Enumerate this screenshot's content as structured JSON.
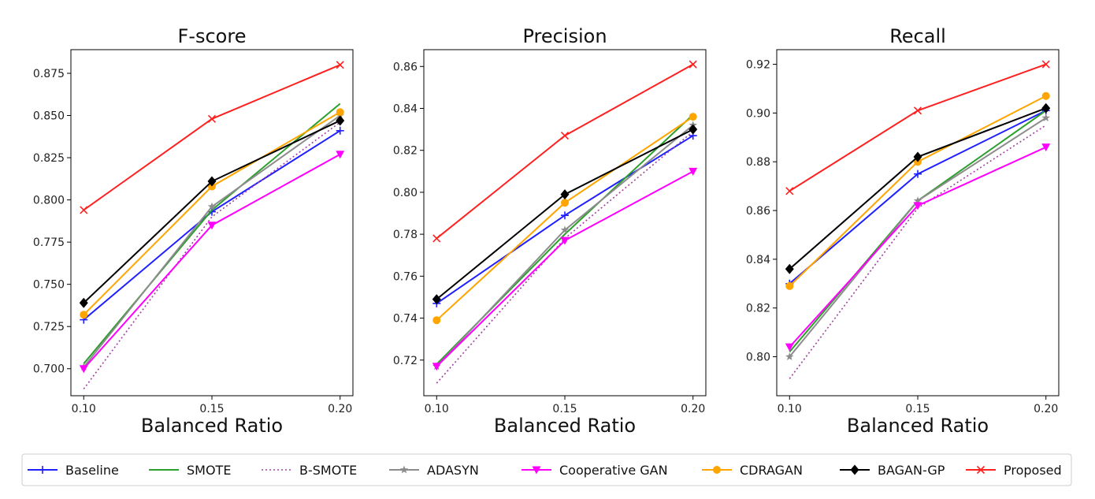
{
  "chart_data": [
    {
      "type": "line",
      "title": "F-score",
      "xlabel": "Balanced Ratio",
      "ylabel": "",
      "x": [
        0.1,
        0.15,
        0.2
      ],
      "x_tick_labels": [
        "0.10",
        "0.15",
        "0.20"
      ],
      "xlim": [
        0.095,
        0.205
      ],
      "ylim": [
        0.684,
        0.889
      ],
      "y_ticks": [
        0.7,
        0.725,
        0.75,
        0.775,
        0.8,
        0.825,
        0.85,
        0.875
      ],
      "y_tick_labels": [
        "0.700",
        "0.725",
        "0.750",
        "0.775",
        "0.800",
        "0.825",
        "0.850",
        "0.875"
      ],
      "series": [
        {
          "name": "Baseline",
          "values": [
            0.729,
            0.793,
            0.841
          ]
        },
        {
          "name": "SMOTE",
          "values": [
            0.703,
            0.794,
            0.857
          ]
        },
        {
          "name": "B-SMOTE",
          "values": [
            0.688,
            0.79,
            0.846
          ]
        },
        {
          "name": "ADASYN",
          "values": [
            0.701,
            0.796,
            0.85
          ]
        },
        {
          "name": "Cooperative GAN",
          "values": [
            0.7,
            0.785,
            0.827
          ]
        },
        {
          "name": "CDRAGAN",
          "values": [
            0.732,
            0.808,
            0.852
          ]
        },
        {
          "name": "BAGAN-GP",
          "values": [
            0.739,
            0.811,
            0.847
          ]
        },
        {
          "name": "Proposed",
          "values": [
            0.794,
            0.848,
            0.88
          ]
        }
      ]
    },
    {
      "type": "line",
      "title": "Precision",
      "xlabel": "Balanced Ratio",
      "ylabel": "",
      "x": [
        0.1,
        0.15,
        0.2
      ],
      "x_tick_labels": [
        "0.10",
        "0.15",
        "0.20"
      ],
      "xlim": [
        0.095,
        0.205
      ],
      "ylim": [
        0.703,
        0.868
      ],
      "y_ticks": [
        0.72,
        0.74,
        0.76,
        0.78,
        0.8,
        0.82,
        0.84,
        0.86
      ],
      "y_tick_labels": [
        "0.72",
        "0.74",
        "0.76",
        "0.78",
        "0.80",
        "0.82",
        "0.84",
        "0.86"
      ],
      "series": [
        {
          "name": "Baseline",
          "values": [
            0.747,
            0.789,
            0.827
          ]
        },
        {
          "name": "SMOTE",
          "values": [
            0.718,
            0.78,
            0.837
          ]
        },
        {
          "name": "B-SMOTE",
          "values": [
            0.709,
            0.778,
            0.829
          ]
        },
        {
          "name": "ADASYN",
          "values": [
            0.717,
            0.782,
            0.832
          ]
        },
        {
          "name": "Cooperative GAN",
          "values": [
            0.717,
            0.777,
            0.81
          ]
        },
        {
          "name": "CDRAGAN",
          "values": [
            0.739,
            0.795,
            0.836
          ]
        },
        {
          "name": "BAGAN-GP",
          "values": [
            0.749,
            0.799,
            0.83
          ]
        },
        {
          "name": "Proposed",
          "values": [
            0.778,
            0.827,
            0.861
          ]
        }
      ]
    },
    {
      "type": "line",
      "title": "Recall",
      "xlabel": "Balanced Ratio",
      "ylabel": "",
      "x": [
        0.1,
        0.15,
        0.2
      ],
      "x_tick_labels": [
        "0.10",
        "0.15",
        "0.20"
      ],
      "xlim": [
        0.095,
        0.205
      ],
      "ylim": [
        0.784,
        0.926
      ],
      "y_ticks": [
        0.8,
        0.82,
        0.84,
        0.86,
        0.88,
        0.9,
        0.92
      ],
      "y_tick_labels": [
        "0.80",
        "0.82",
        "0.84",
        "0.86",
        "0.88",
        "0.90",
        "0.92"
      ],
      "series": [
        {
          "name": "Baseline",
          "values": [
            0.83,
            0.875,
            0.901
          ]
        },
        {
          "name": "SMOTE",
          "values": [
            0.802,
            0.864,
            0.901
          ]
        },
        {
          "name": "B-SMOTE",
          "values": [
            0.791,
            0.861,
            0.895
          ]
        },
        {
          "name": "ADASYN",
          "values": [
            0.8,
            0.864,
            0.898
          ]
        },
        {
          "name": "Cooperative GAN",
          "values": [
            0.804,
            0.862,
            0.886
          ]
        },
        {
          "name": "CDRAGAN",
          "values": [
            0.829,
            0.88,
            0.907
          ]
        },
        {
          "name": "BAGAN-GP",
          "values": [
            0.836,
            0.882,
            0.902
          ]
        },
        {
          "name": "Proposed",
          "values": [
            0.868,
            0.901,
            0.92
          ]
        }
      ]
    }
  ],
  "legend": {
    "position": "bottom",
    "entries": [
      {
        "name": "Baseline",
        "color": "#1f1fff",
        "dash": "solid",
        "marker": "plus"
      },
      {
        "name": "SMOTE",
        "color": "#2ca02c",
        "dash": "solid",
        "marker": "none"
      },
      {
        "name": "B-SMOTE",
        "color": "#a040a0",
        "dash": "dotted",
        "marker": "none"
      },
      {
        "name": "ADASYN",
        "color": "#8c8c8c",
        "dash": "solid",
        "marker": "star"
      },
      {
        "name": "Cooperative GAN",
        "color": "#ff00ff",
        "dash": "solid",
        "marker": "triangle-down"
      },
      {
        "name": "CDRAGAN",
        "color": "#ffa500",
        "dash": "solid",
        "marker": "circle"
      },
      {
        "name": "BAGAN-GP",
        "color": "#000000",
        "dash": "solid",
        "marker": "diamond"
      },
      {
        "name": "Proposed",
        "color": "#ff2020",
        "dash": "solid",
        "marker": "x"
      }
    ]
  }
}
